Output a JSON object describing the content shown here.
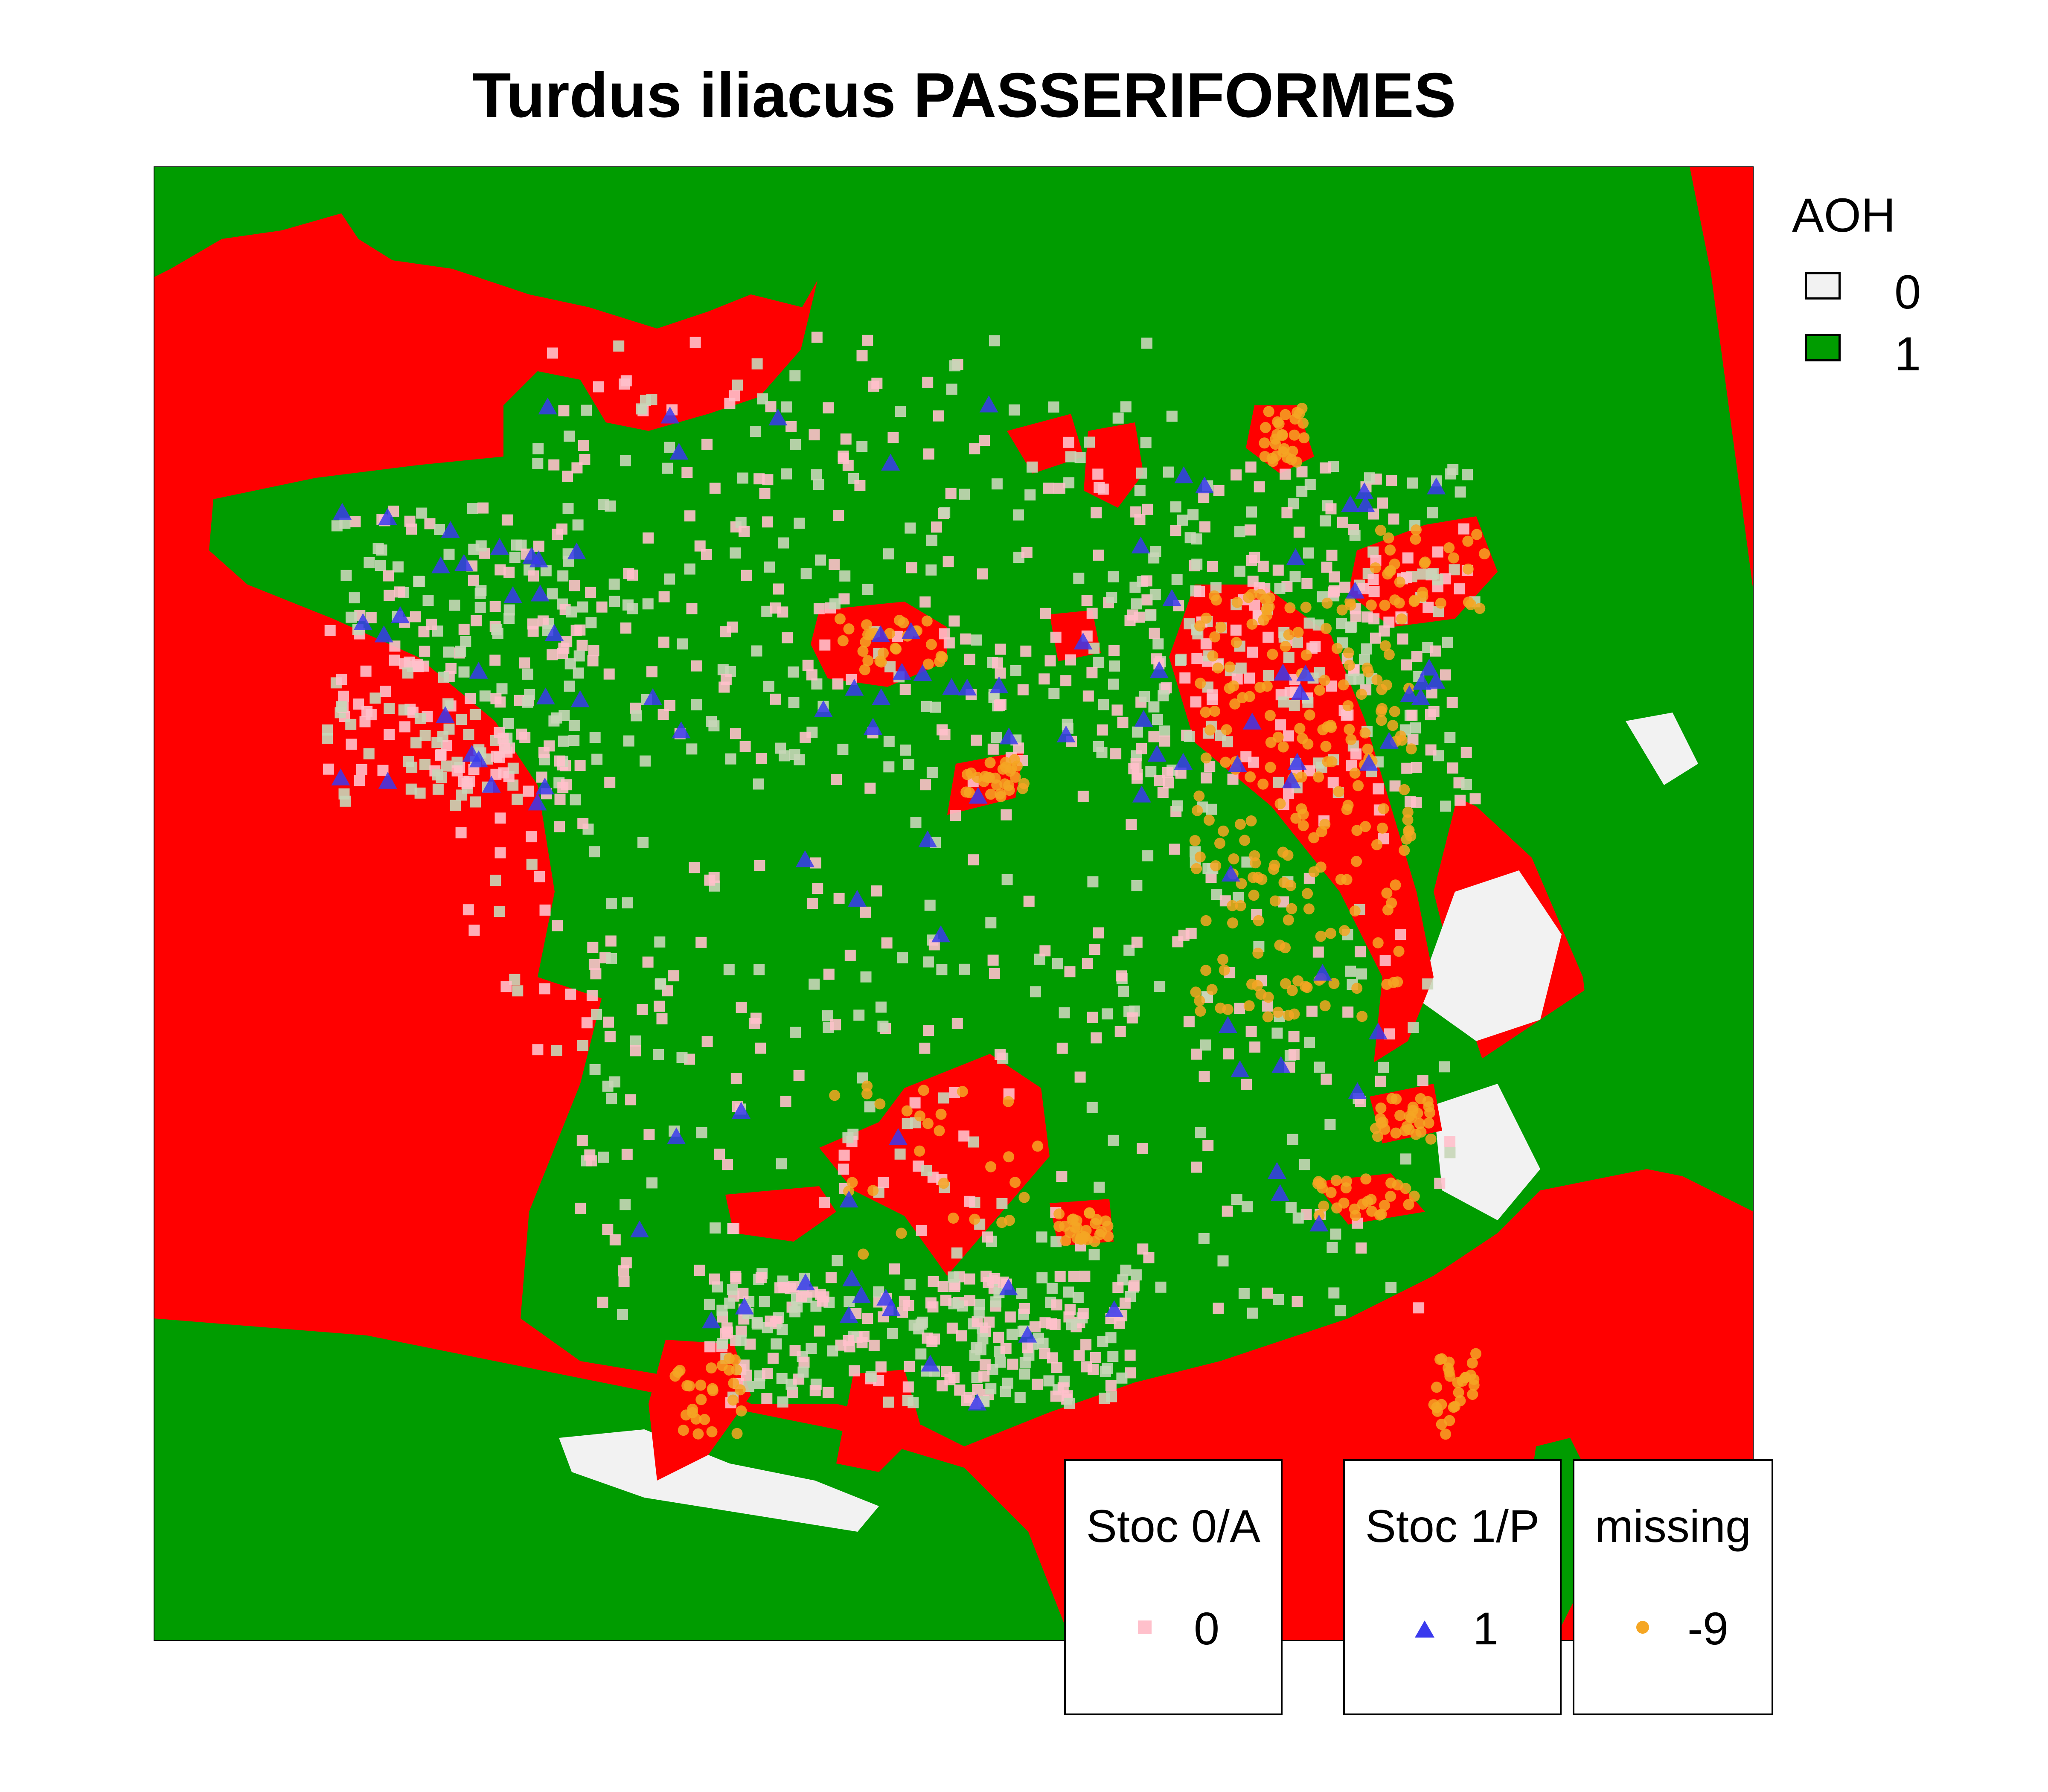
{
  "title": "Turdus iliacus PASSERIFORMES",
  "colors": {
    "sea_red": "#ff0000",
    "habitat_green": "#009c00",
    "aoh_zero": "#f2f2f2",
    "stoc_absent": "#ffc0cb",
    "stoc_present": "#3a3aee",
    "missing": "#f5a623"
  },
  "aoh_legend": {
    "title": "AOH",
    "items": [
      {
        "label": "0",
        "color": "#f2f2f2"
      },
      {
        "label": "1",
        "color": "#009c00"
      }
    ]
  },
  "point_legends": [
    {
      "title": "Stoc 0/A",
      "value_label": "0",
      "symbol": "square-icon",
      "color": "#ffc0cb"
    },
    {
      "title": "Stoc 1/P",
      "value_label": "1",
      "symbol": "triangle-icon",
      "color": "#3a3aee"
    },
    {
      "title": "missing",
      "value_label": "-9",
      "symbol": "circle-icon",
      "color": "#f5a623"
    }
  ]
}
